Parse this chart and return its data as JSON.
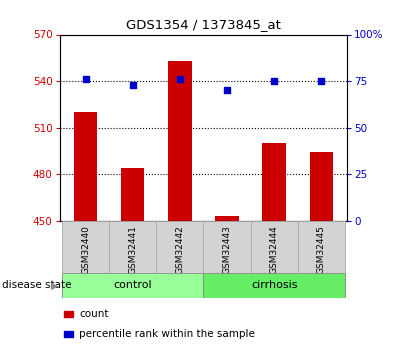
{
  "title": "GDS1354 / 1373845_at",
  "samples": [
    "GSM32440",
    "GSM32441",
    "GSM32442",
    "GSM32443",
    "GSM32444",
    "GSM32445"
  ],
  "counts": [
    520,
    484,
    553,
    453,
    500,
    494
  ],
  "percentiles": [
    76,
    73,
    76,
    70,
    75,
    75
  ],
  "ylim_left": [
    450,
    570
  ],
  "ylim_right": [
    0,
    100
  ],
  "yticks_left": [
    450,
    480,
    510,
    540,
    570
  ],
  "yticks_right": [
    0,
    25,
    50,
    75,
    100
  ],
  "ytick_labels_right": [
    "0",
    "25",
    "50",
    "75",
    "100%"
  ],
  "bar_color": "#cc0000",
  "dot_color": "#0000cc",
  "groups": [
    {
      "label": "control",
      "indices": [
        0,
        1,
        2
      ],
      "color": "#99ff99"
    },
    {
      "label": "cirrhosis",
      "indices": [
        3,
        4,
        5
      ],
      "color": "#66ee66"
    }
  ],
  "legend_items": [
    {
      "color": "#cc0000",
      "label": "count"
    },
    {
      "color": "#0000cc",
      "label": "percentile rank within the sample"
    }
  ],
  "background_color": "#ffffff",
  "tick_label_color_left": "#cc0000",
  "tick_label_color_right": "#0000cc",
  "bar_width": 0.5,
  "base_value": 450
}
